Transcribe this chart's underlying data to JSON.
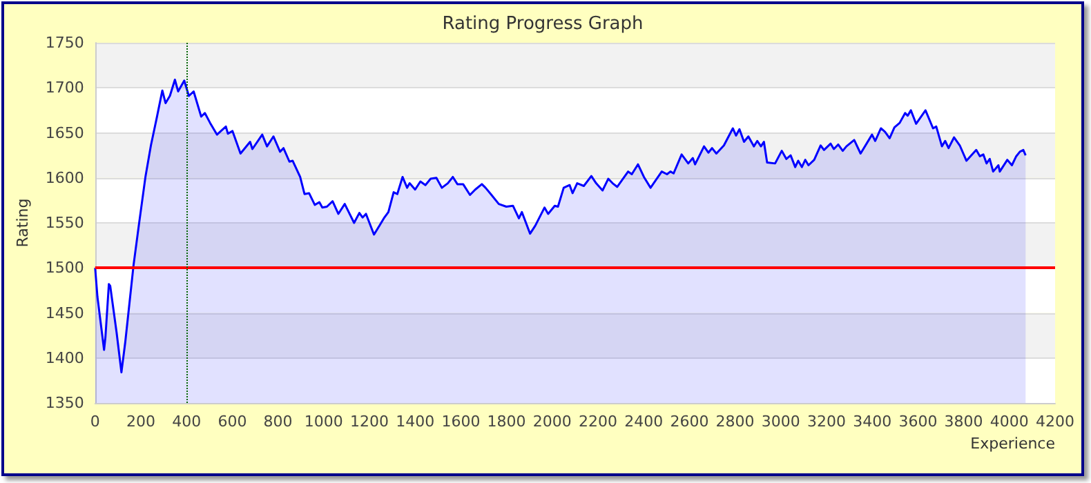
{
  "chart_data": {
    "type": "area",
    "title": "Rating Progress Graph",
    "xlabel": "Experience",
    "ylabel": "Rating",
    "xlim": [
      0,
      4200
    ],
    "xticks": [
      0,
      200,
      400,
      600,
      800,
      1000,
      1200,
      1400,
      1600,
      1800,
      2000,
      2200,
      2400,
      2600,
      2800,
      3000,
      3200,
      3400,
      3600,
      3800,
      4000,
      4200
    ],
    "ylim": [
      1350,
      1750
    ],
    "yticks": [
      1350,
      1400,
      1450,
      1500,
      1550,
      1600,
      1650,
      1700,
      1750
    ],
    "grid": "y",
    "marker": "none",
    "line_style": "solid",
    "ref_lines": [
      {
        "axis": "y",
        "value": 1500,
        "color": "#ff0000",
        "line_style": "solid"
      },
      {
        "axis": "x",
        "value": 400,
        "color": "#006400",
        "line_style": "dotted"
      }
    ],
    "series": [
      {
        "color": "#0000ff",
        "x": [
          0,
          10,
          39,
          45,
          60,
          66,
          94,
          115,
          132,
          168,
          191,
          220,
          244,
          269,
          294,
          308,
          327,
          349,
          363,
          390,
          410,
          431,
          464,
          480,
          503,
          533,
          572,
          581,
          601,
          636,
          678,
          688,
          731,
          752,
          780,
          809,
          824,
          850,
          864,
          897,
          916,
          936,
          961,
          981,
          994,
          1014,
          1039,
          1064,
          1092,
          1133,
          1156,
          1170,
          1185,
          1220,
          1244,
          1263,
          1283,
          1306,
          1322,
          1345,
          1365,
          1376,
          1400,
          1423,
          1445,
          1468,
          1493,
          1517,
          1543,
          1565,
          1585,
          1610,
          1640,
          1663,
          1692,
          1708,
          1731,
          1766,
          1799,
          1828,
          1854,
          1867,
          1903,
          1926,
          1966,
          1982,
          2011,
          2025,
          2050,
          2076,
          2089,
          2109,
          2138,
          2171,
          2192,
          2220,
          2245,
          2264,
          2284,
          2332,
          2348,
          2375,
          2401,
          2430,
          2479,
          2502,
          2517,
          2531,
          2566,
          2595,
          2615,
          2625,
          2664,
          2683,
          2699,
          2718,
          2751,
          2790,
          2804,
          2819,
          2839,
          2858,
          2882,
          2897,
          2913,
          2926,
          2940,
          2975,
          3004,
          3024,
          3043,
          3063,
          3076,
          3092,
          3107,
          3121,
          3146,
          3174,
          3189,
          3218,
          3232,
          3251,
          3271,
          3287,
          3321,
          3349,
          3399,
          3413,
          3438,
          3456,
          3476,
          3497,
          3520,
          3544,
          3555,
          3569,
          3592,
          3633,
          3666,
          3680,
          3705,
          3719,
          3734,
          3758,
          3783,
          3812,
          3855,
          3871,
          3886,
          3900,
          3914,
          3929,
          3952,
          3958,
          3991,
          4011,
          4030,
          4046,
          4061,
          4071
        ],
        "values": [
          1500,
          1468,
          1409,
          1423,
          1482,
          1480,
          1428,
          1384,
          1418,
          1503,
          1547,
          1601,
          1636,
          1666,
          1697,
          1683,
          1691,
          1709,
          1696,
          1708,
          1691,
          1696,
          1668,
          1672,
          1661,
          1648,
          1657,
          1649,
          1652,
          1627,
          1640,
          1632,
          1648,
          1635,
          1646,
          1629,
          1633,
          1618,
          1619,
          1601,
          1582,
          1583,
          1570,
          1573,
          1567,
          1568,
          1574,
          1560,
          1571,
          1550,
          1561,
          1556,
          1560,
          1537,
          1547,
          1555,
          1562,
          1584,
          1582,
          1601,
          1589,
          1594,
          1587,
          1596,
          1592,
          1599,
          1600,
          1589,
          1594,
          1601,
          1593,
          1593,
          1581,
          1587,
          1593,
          1589,
          1582,
          1571,
          1568,
          1569,
          1555,
          1562,
          1538,
          1547,
          1567,
          1560,
          1569,
          1568,
          1589,
          1592,
          1583,
          1594,
          1591,
          1602,
          1594,
          1586,
          1599,
          1594,
          1590,
          1607,
          1604,
          1615,
          1601,
          1589,
          1607,
          1604,
          1607,
          1605,
          1626,
          1616,
          1622,
          1615,
          1635,
          1628,
          1633,
          1627,
          1636,
          1655,
          1647,
          1654,
          1640,
          1646,
          1635,
          1641,
          1635,
          1640,
          1617,
          1616,
          1630,
          1621,
          1625,
          1612,
          1619,
          1612,
          1620,
          1614,
          1620,
          1636,
          1631,
          1638,
          1632,
          1637,
          1630,
          1635,
          1642,
          1627,
          1648,
          1641,
          1655,
          1651,
          1644,
          1656,
          1661,
          1672,
          1669,
          1675,
          1660,
          1675,
          1655,
          1657,
          1635,
          1641,
          1633,
          1645,
          1636,
          1619,
          1631,
          1624,
          1626,
          1616,
          1621,
          1607,
          1614,
          1607,
          1620,
          1614,
          1624,
          1629,
          1631,
          1625
        ]
      }
    ]
  }
}
